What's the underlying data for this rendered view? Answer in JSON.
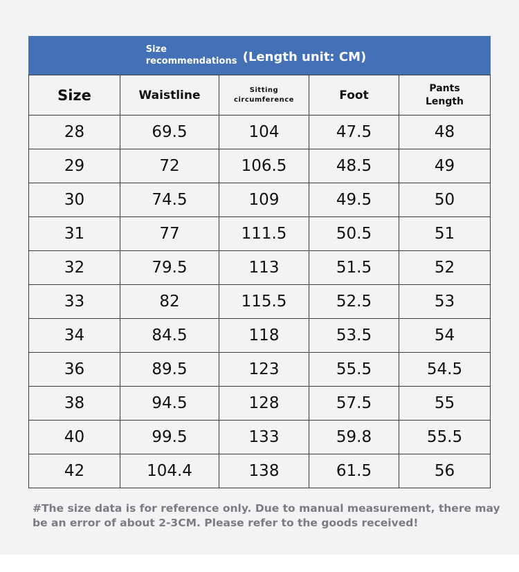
{
  "header": {
    "small_line1": "Size",
    "small_line2": "recommendations",
    "big": "(Length unit: CM)"
  },
  "columns": {
    "size": "Size",
    "waistline": "Waistline",
    "sitting_line1": "Sitting",
    "sitting_line2": "circumference",
    "foot": "Foot",
    "pants_line1": "Pants",
    "pants_line2": "Length"
  },
  "rows": [
    [
      "28",
      "69.5",
      "104",
      "47.5",
      "48"
    ],
    [
      "29",
      "72",
      "106.5",
      "48.5",
      "49"
    ],
    [
      "30",
      "74.5",
      "109",
      "49.5",
      "50"
    ],
    [
      "31",
      "77",
      "111.5",
      "50.5",
      "51"
    ],
    [
      "32",
      "79.5",
      "113",
      "51.5",
      "52"
    ],
    [
      "33",
      "82",
      "115.5",
      "52.5",
      "53"
    ],
    [
      "34",
      "84.5",
      "118",
      "53.5",
      "54"
    ],
    [
      "36",
      "89.5",
      "123",
      "55.5",
      "54.5"
    ],
    [
      "38",
      "94.5",
      "128",
      "57.5",
      "55"
    ],
    [
      "40",
      "99.5",
      "133",
      "59.8",
      "55.5"
    ],
    [
      "42",
      "104.4",
      "138",
      "61.5",
      "56"
    ]
  ],
  "note": "#The size data is for reference only. Due to manual measurement, there may be an error of about 2-3CM. Please refer to the goods received!",
  "colors": {
    "header_bg": "#4471b5",
    "page_bg": "#f3f3f5",
    "note_text": "#7c7c80"
  }
}
